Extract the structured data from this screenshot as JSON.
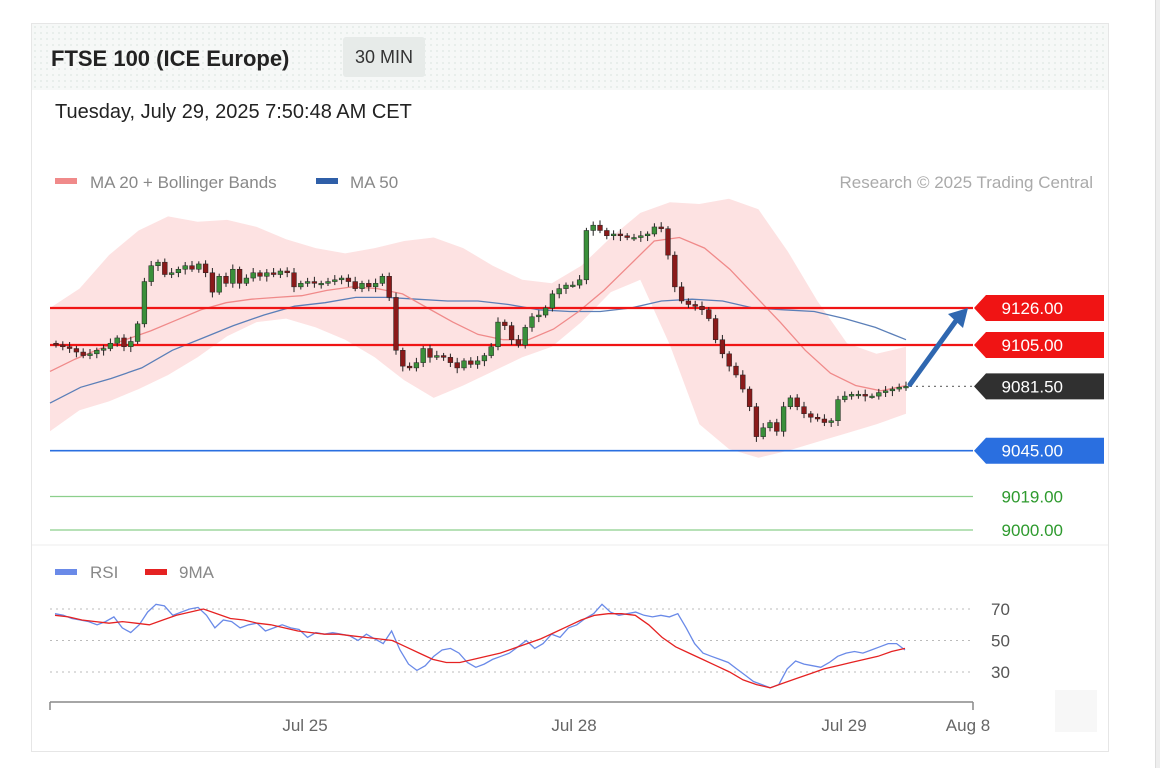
{
  "header": {
    "title": "FTSE 100 (ICE Europe)",
    "interval": "30 MIN",
    "timestamp": "Tuesday, July 29, 2025 7:50:48 AM CET"
  },
  "legend": {
    "ma20": "MA 20 + Bollinger Bands",
    "ma50": "MA 50",
    "credit": "Research © 2025 Trading Central",
    "rsi": "RSI",
    "rsi_ma": "9MA"
  },
  "colors": {
    "up": "#3a8f3a",
    "down": "#8a1a1a",
    "resistance": "#f01414",
    "last": "#303030",
    "pivot": "#2a6fe0",
    "support": "#2e9a2e",
    "ma20": "#f08a8a",
    "band": "#fde2e2",
    "ma50": "#5b7fb8",
    "rsi": "#6a8ae8",
    "rsi_ma": "#e52222",
    "arrow": "#2f67b0"
  },
  "chart_data": {
    "type": "candlestick",
    "x_labels": [
      "Jul 25",
      "Jul 28",
      "Jul 29",
      "Aug 8"
    ],
    "ylim": [
      8992,
      9232
    ],
    "levels": [
      {
        "label": "9126.00",
        "value": 9126.0,
        "kind": "resistance"
      },
      {
        "label": "9105.00",
        "value": 9105.0,
        "kind": "resistance"
      },
      {
        "label": "9081.50",
        "value": 9081.5,
        "kind": "last"
      },
      {
        "label": "9045.00",
        "value": 9045.0,
        "kind": "pivot"
      },
      {
        "label": "9019.00",
        "value": 9019.0,
        "kind": "support"
      },
      {
        "label": "9000.00",
        "value": 9000.0,
        "kind": "support"
      }
    ],
    "candles_close": [
      9105,
      9104,
      9103,
      9101,
      9099,
      9100,
      9102,
      9103,
      9106,
      9109,
      9104,
      9107,
      9117,
      9141,
      9150,
      9152,
      9145,
      9146,
      9148,
      9150,
      9148,
      9151,
      9146,
      9135,
      9144,
      9140,
      9148,
      9140,
      9143,
      9146,
      9144,
      9146,
      9145,
      9147,
      9146,
      9138,
      9140,
      9141,
      9140,
      9140,
      9141,
      9142,
      9143,
      9141,
      9137,
      9140,
      9138,
      9140,
      9144,
      9132,
      9102,
      9093,
      9092,
      9095,
      9103,
      9098,
      9099,
      9098,
      9095,
      9092,
      9096,
      9094,
      9096,
      9099,
      9104,
      9118,
      9116,
      9108,
      9105,
      9115,
      9121,
      9122,
      9126,
      9134,
      9137,
      9139,
      9139,
      9142,
      9170,
      9173,
      9170,
      9167,
      9168,
      9167,
      9166,
      9166,
      9167,
      9168,
      9172,
      9171,
      9156,
      9138,
      9130,
      9128,
      9127,
      9125,
      9120,
      9108,
      9100,
      9093,
      9088,
      9080,
      9070,
      9053,
      9058,
      9061,
      9056,
      9070,
      9075,
      9070,
      9066,
      9064,
      9063,
      9061,
      9062,
      9074,
      9076,
      9077,
      9077,
      9076,
      9076,
      9078,
      9079,
      9080,
      9081,
      9081.5
    ],
    "ma20": [
      9090,
      9097,
      9103,
      9108,
      9113,
      9119,
      9125,
      9129,
      9131,
      9132,
      9133,
      9136,
      9138,
      9137,
      9134,
      9126,
      9118,
      9111,
      9108,
      9108,
      9114,
      9124,
      9136,
      9150,
      9164,
      9166,
      9160,
      9148,
      9133,
      9118,
      9102,
      9089,
      9082,
      9079,
      9082
    ],
    "ma50": [
      9072,
      9081,
      9086,
      9092,
      9102,
      9109,
      9116,
      9122,
      9127,
      9129,
      9132,
      9132,
      9131,
      9130,
      9130,
      9128,
      9125,
      9124,
      9124,
      9126,
      9130,
      9131,
      9130,
      9126,
      9125,
      9124,
      9120,
      9115,
      9108
    ],
    "bb_upper": [
      9126,
      9137,
      9156,
      9170,
      9178,
      9175,
      9176,
      9172,
      9165,
      9160,
      9157,
      9160,
      9164,
      9166,
      9160,
      9150,
      9142,
      9140,
      9150,
      9166,
      9180,
      9186,
      9185,
      9188,
      9182,
      9158,
      9130,
      9106,
      9100,
      9104
    ],
    "bb_lower": [
      9056,
      9068,
      9073,
      9080,
      9088,
      9098,
      9110,
      9118,
      9120,
      9115,
      9108,
      9098,
      9085,
      9075,
      9082,
      9090,
      9098,
      9104,
      9118,
      9135,
      9142,
      9105,
      9060,
      9046,
      9041,
      9045,
      9050,
      9055,
      9060,
      9066
    ],
    "projection": {
      "from": 9081.5,
      "to": 9126.0
    },
    "rsi": {
      "ticks": [
        70,
        50,
        30
      ],
      "ylim": [
        15,
        80
      ],
      "rsi": [
        67,
        66,
        64,
        63,
        62,
        60,
        62,
        65,
        58,
        55,
        60,
        68,
        73,
        72,
        66,
        68,
        70,
        71,
        66,
        58,
        63,
        62,
        58,
        60,
        61,
        56,
        58,
        60,
        58,
        57,
        52,
        55,
        54,
        55,
        54,
        53,
        50,
        54,
        51,
        48,
        56,
        44,
        35,
        31,
        34,
        40,
        44,
        45,
        42,
        36,
        33,
        35,
        38,
        40,
        42,
        46,
        50,
        45,
        48,
        54,
        52,
        58,
        60,
        64,
        67,
        73,
        68,
        66,
        67,
        68,
        66,
        65,
        66,
        65,
        67,
        58,
        48,
        42,
        40,
        38,
        36,
        32,
        28,
        24,
        22,
        20,
        22,
        32,
        37,
        35,
        34,
        33,
        36,
        40,
        42,
        43,
        42,
        44,
        46,
        48,
        48,
        44
      ],
      "ma9": [
        66,
        65,
        63,
        62,
        61,
        62,
        61,
        60,
        63,
        66,
        68,
        70,
        67,
        64,
        63,
        61,
        60,
        58,
        56,
        55,
        54,
        54,
        53,
        52,
        51,
        50,
        46,
        42,
        38,
        36,
        36,
        38,
        40,
        42,
        45,
        48,
        51,
        55,
        59,
        63,
        66,
        67,
        67,
        66,
        60,
        52,
        46,
        42,
        38,
        34,
        30,
        25,
        22,
        20,
        23,
        26,
        29,
        32,
        34,
        36,
        38,
        40,
        43,
        45
      ]
    }
  }
}
